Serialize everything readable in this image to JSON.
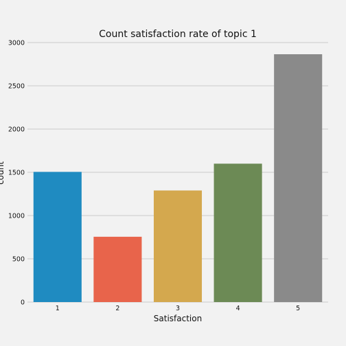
{
  "chart_data": {
    "type": "bar",
    "title": "Count satisfaction rate of topic 1",
    "xlabel": "Satisfaction",
    "ylabel": "count",
    "categories": [
      "1",
      "2",
      "3",
      "4",
      "5"
    ],
    "values": [
      1505,
      755,
      1290,
      1600,
      2865
    ],
    "colors": [
      "#1f8bc1",
      "#e8644b",
      "#d4a84e",
      "#6c8a55",
      "#8a8a8a"
    ],
    "ylim": [
      0,
      3000
    ],
    "yticks": [
      0,
      500,
      1000,
      1500,
      2000,
      2500,
      3000
    ],
    "grid": true,
    "background": "#f2f2f2"
  }
}
